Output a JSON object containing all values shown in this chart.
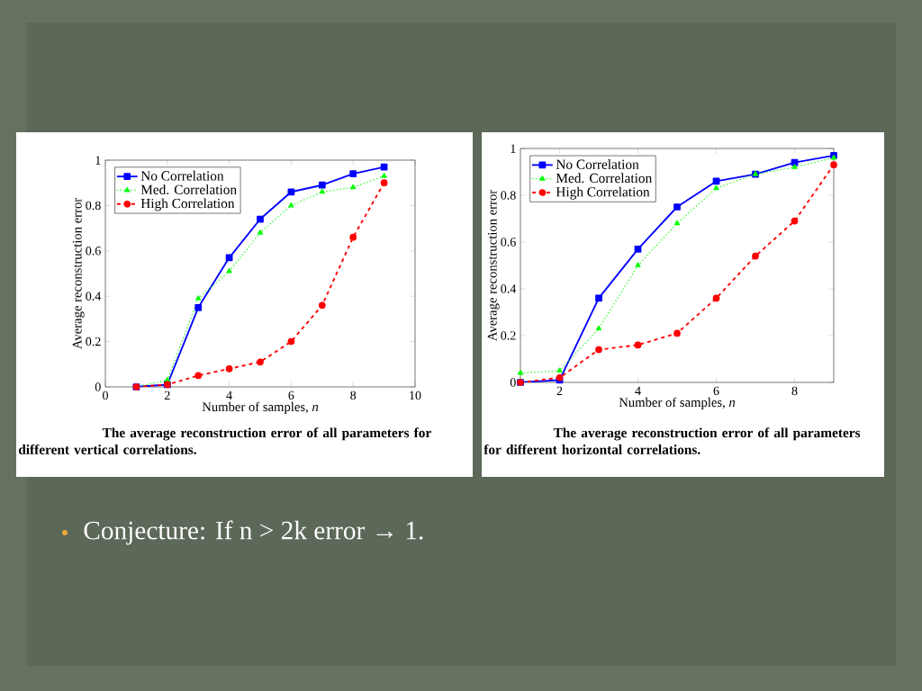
{
  "chart_data": [
    {
      "type": "line",
      "xlabel": "Number of samples, *n*",
      "ylabel": "Average reconstruction error",
      "x": [
        1,
        2,
        3,
        4,
        5,
        6,
        7,
        8,
        9
      ],
      "xlim": [
        0,
        10
      ],
      "xticks": [
        0,
        2,
        4,
        6,
        8,
        10
      ],
      "ylim": [
        0,
        1
      ],
      "yticks": [
        0,
        0.2,
        0.4,
        0.6,
        0.8,
        1
      ],
      "legend": "top left",
      "series": [
        {
          "name": "No Correlation",
          "color": "#0000ff",
          "marker": "square",
          "line_style": "solid",
          "values": [
            0,
            0.01,
            0.35,
            0.57,
            0.74,
            0.86,
            0.89,
            0.94,
            0.97
          ]
        },
        {
          "name": "Med. Correlation",
          "color": "#00ff00",
          "marker": "triangle",
          "line_style": "dotted",
          "values": [
            0,
            0.03,
            0.39,
            0.51,
            0.68,
            0.8,
            0.86,
            0.88,
            0.93
          ]
        },
        {
          "name": "High Correlation",
          "color": "#ff0000",
          "marker": "circle",
          "line_style": "dashed",
          "values": [
            0,
            0.01,
            0.05,
            0.08,
            0.11,
            0.2,
            0.36,
            0.66,
            0.9
          ]
        }
      ],
      "annotations": [
        "The average reconstruction error of all parameters for different vertical correlations."
      ]
    },
    {
      "type": "line",
      "xlabel": "Number of samples, *n*",
      "ylabel": "Average reconstruction error",
      "x": [
        1,
        2,
        3,
        4,
        5,
        6,
        7,
        8,
        9
      ],
      "xlim": [
        1,
        9
      ],
      "xticks": [
        2,
        4,
        6,
        8
      ],
      "ylim": [
        0,
        1
      ],
      "yticks": [
        0,
        0.2,
        0.4,
        0.6,
        0.8,
        1
      ],
      "legend": "top left",
      "series": [
        {
          "name": "No Correlation",
          "color": "#0000ff",
          "marker": "square",
          "line_style": "solid",
          "values": [
            0,
            0.01,
            0.36,
            0.57,
            0.75,
            0.86,
            0.89,
            0.94,
            0.97
          ]
        },
        {
          "name": "Med. Correlation",
          "color": "#00ff00",
          "marker": "triangle",
          "line_style": "dotted",
          "values": [
            0.04,
            0.05,
            0.23,
            0.5,
            0.68,
            0.83,
            0.89,
            0.92,
            0.96
          ]
        },
        {
          "name": "High Correlation",
          "color": "#ff0000",
          "marker": "circle",
          "line_style": "dashed",
          "values": [
            0,
            0.02,
            0.14,
            0.16,
            0.21,
            0.36,
            0.54,
            0.69,
            0.93
          ]
        }
      ],
      "annotations": [
        "The average reconstruction error of all parameters for different horizontal correlations.",
        "Conjecture: If n > 2k error → 1."
      ]
    }
  ]
}
